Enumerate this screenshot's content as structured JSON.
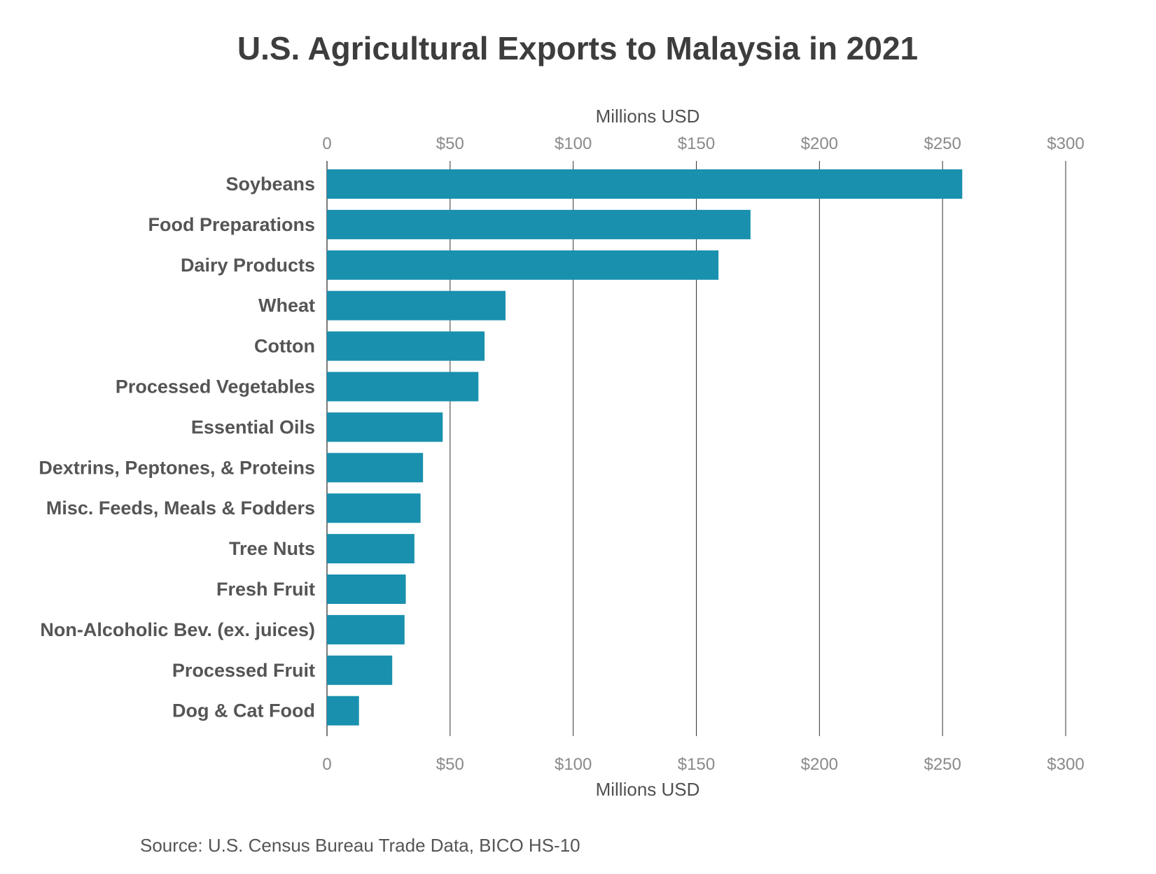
{
  "chart_data": {
    "type": "bar",
    "orientation": "horizontal",
    "title": "U.S. Agricultural Exports to Malaysia in 2021",
    "xlabel": "Millions USD",
    "ylabel": "",
    "xlim": [
      0,
      300
    ],
    "ticks": [
      {
        "value": 0,
        "label": "0"
      },
      {
        "value": 50,
        "label": "$50"
      },
      {
        "value": 100,
        "label": "$100"
      },
      {
        "value": 150,
        "label": "$150"
      },
      {
        "value": 200,
        "label": "$200"
      },
      {
        "value": 250,
        "label": "$250"
      },
      {
        "value": 300,
        "label": "$300"
      }
    ],
    "categories": [
      "Soybeans",
      "Food Preparations",
      "Dairy Products",
      "Wheat",
      "Cotton",
      "Processed Vegetables",
      "Essential Oils",
      "Dextrins, Peptones, & Proteins",
      "Misc. Feeds, Meals & Fodders",
      "Tree Nuts",
      "Fresh Fruit",
      "Non-Alcoholic Bev. (ex. juices)",
      "Processed Fruit",
      "Dog & Cat Food"
    ],
    "values": [
      258,
      172,
      159,
      72.5,
      64,
      61.5,
      47,
      39,
      38,
      35.5,
      32,
      31.5,
      26.5,
      13
    ],
    "bar_color": "#1990ae",
    "grid": true,
    "gridline_color": "#333333",
    "axis_top": true,
    "axis_bottom": true,
    "legend": "none",
    "source": "Source: U.S. Census Bureau Trade Data, BICO HS-10"
  }
}
